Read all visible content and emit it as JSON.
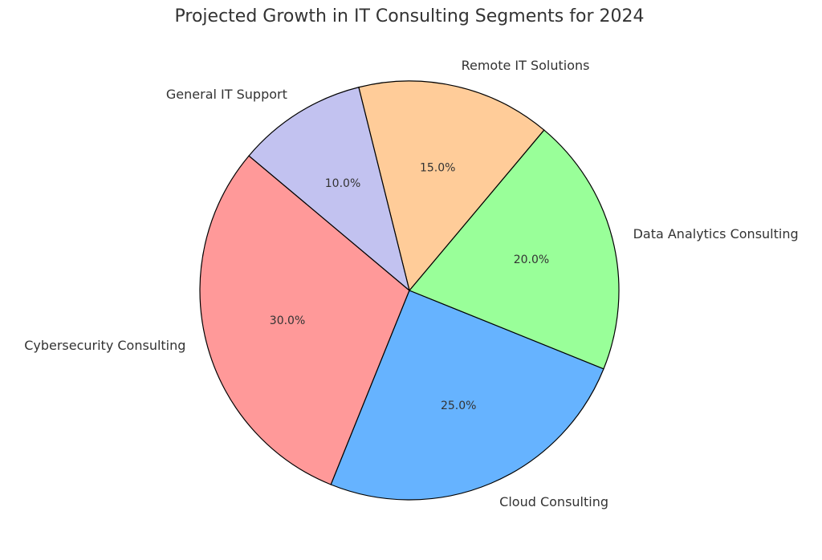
{
  "chart_data": {
    "type": "pie",
    "title": "Projected Growth in IT Consulting Segments for 2024",
    "categories": [
      "Cybersecurity Consulting",
      "Cloud Consulting",
      "Data Analytics Consulting",
      "Remote IT Solutions",
      "General IT Support"
    ],
    "values": [
      30,
      25,
      20,
      15,
      10
    ],
    "value_labels": [
      "30.0%",
      "25.0%",
      "20.0%",
      "15.0%",
      "10.0%"
    ],
    "colors": [
      "#ff9999",
      "#66b3ff",
      "#99ff99",
      "#ffcc99",
      "#c2c2f0"
    ]
  }
}
